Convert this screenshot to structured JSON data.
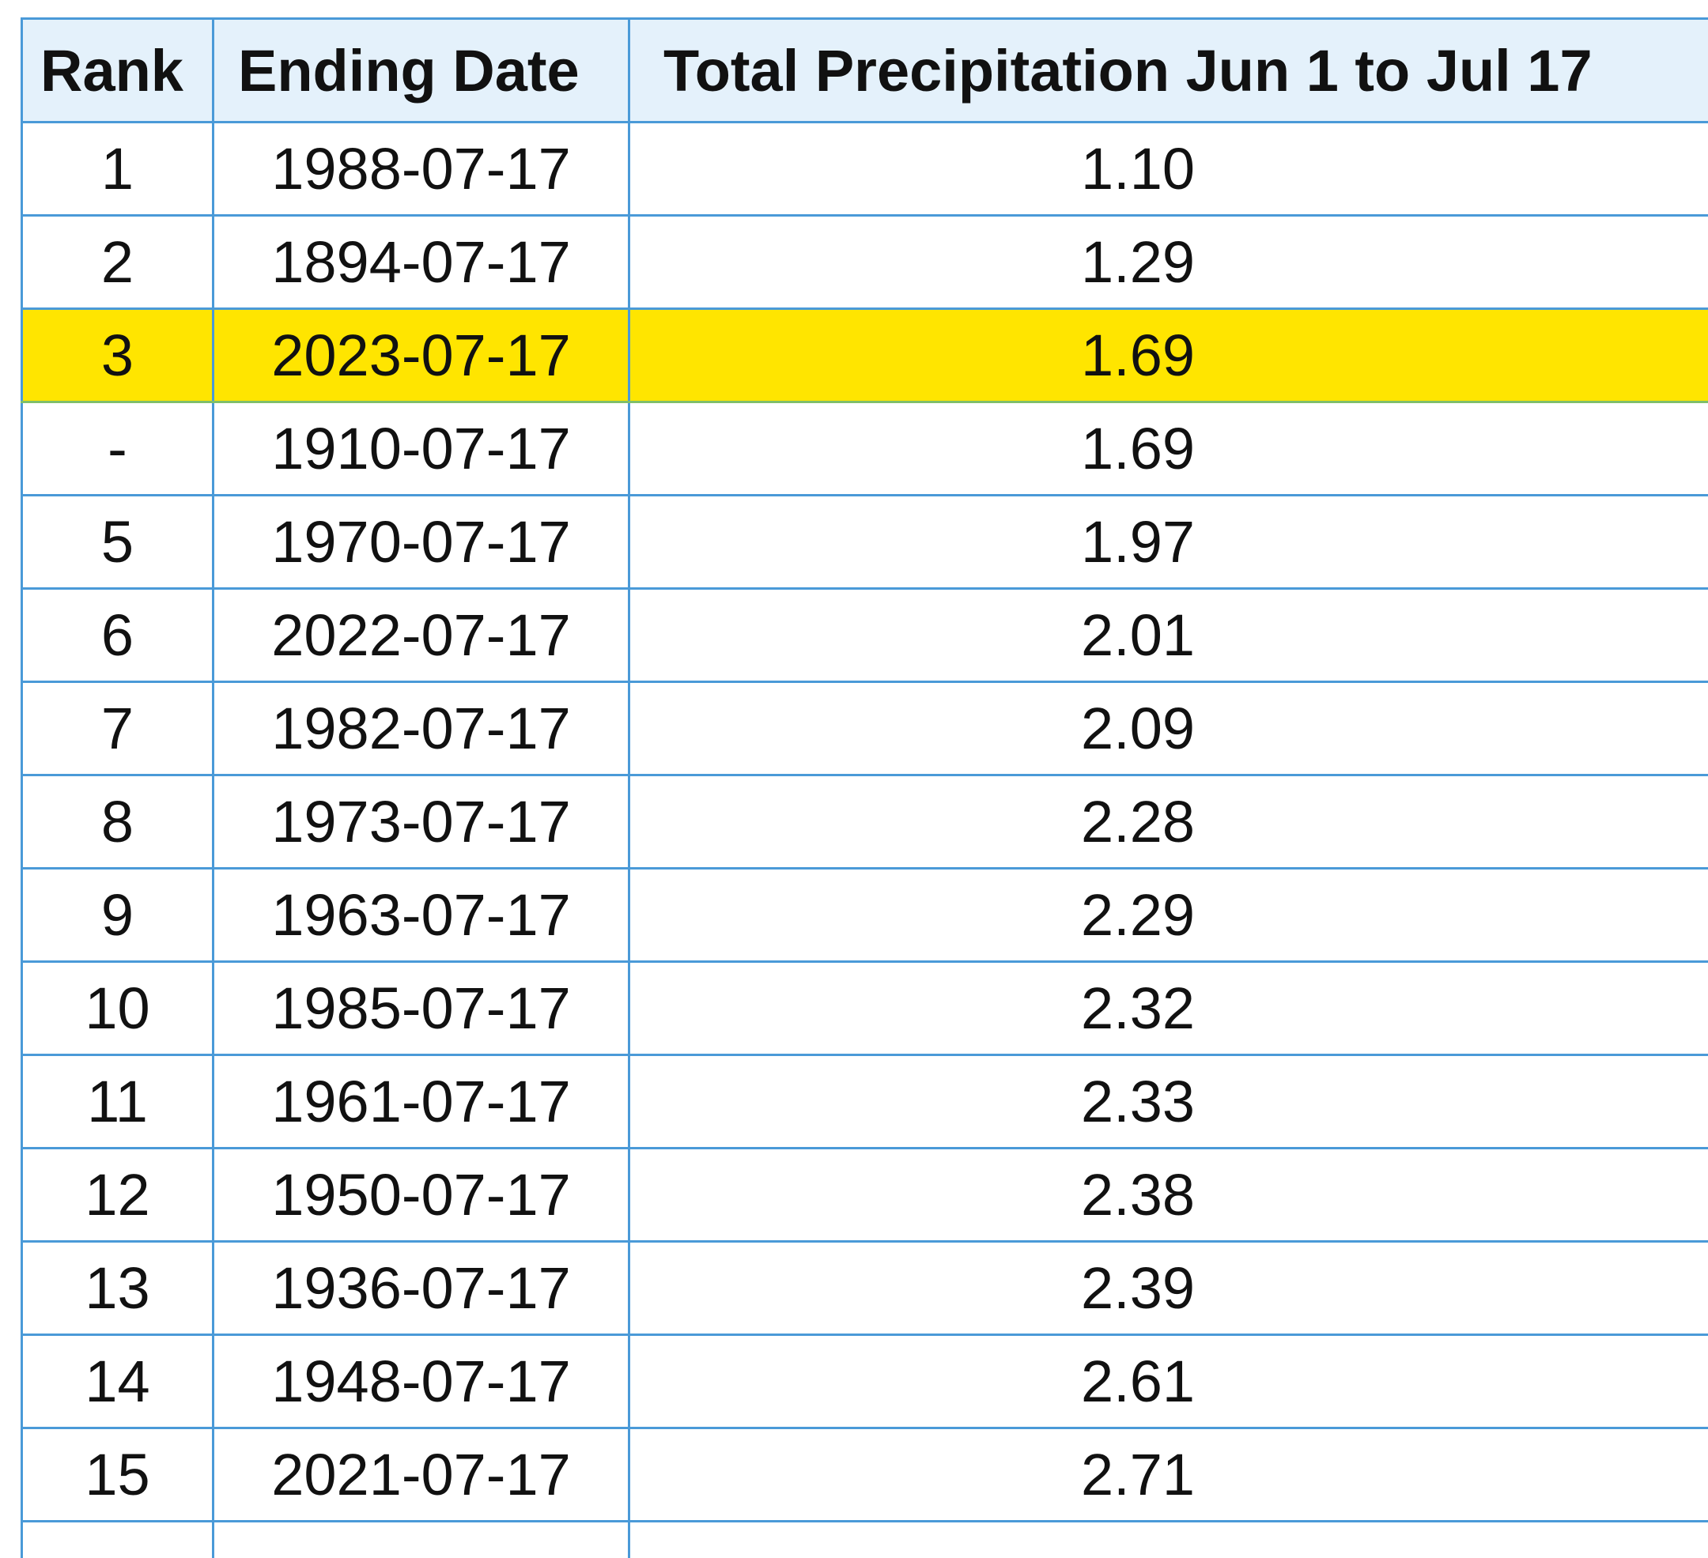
{
  "table": {
    "headers": {
      "rank": "Rank",
      "ending_date": "Ending Date",
      "precip": "Total Precipitation Jun 1 to Jul 17"
    },
    "highlight_color": "#ffe500",
    "border_color": "#4a9ad8",
    "header_bg": "#e4f1fb",
    "rows": [
      {
        "rank": "1",
        "date": "1988-07-17",
        "precip": "1.10",
        "highlighted": false
      },
      {
        "rank": "2",
        "date": "1894-07-17",
        "precip": "1.29",
        "highlighted": false
      },
      {
        "rank": "3",
        "date": "2023-07-17",
        "precip": "1.69",
        "highlighted": true
      },
      {
        "rank": "-",
        "date": "1910-07-17",
        "precip": "1.69",
        "highlighted": false
      },
      {
        "rank": "5",
        "date": "1970-07-17",
        "precip": "1.97",
        "highlighted": false
      },
      {
        "rank": "6",
        "date": "2022-07-17",
        "precip": "2.01",
        "highlighted": false
      },
      {
        "rank": "7",
        "date": "1982-07-17",
        "precip": "2.09",
        "highlighted": false
      },
      {
        "rank": "8",
        "date": "1973-07-17",
        "precip": "2.28",
        "highlighted": false
      },
      {
        "rank": "9",
        "date": "1963-07-17",
        "precip": "2.29",
        "highlighted": false
      },
      {
        "rank": "10",
        "date": "1985-07-17",
        "precip": "2.32",
        "highlighted": false
      },
      {
        "rank": "11",
        "date": "1961-07-17",
        "precip": "2.33",
        "highlighted": false
      },
      {
        "rank": "12",
        "date": "1950-07-17",
        "precip": "2.38",
        "highlighted": false
      },
      {
        "rank": "13",
        "date": "1936-07-17",
        "precip": "2.39",
        "highlighted": false
      },
      {
        "rank": "14",
        "date": "1948-07-17",
        "precip": "2.61",
        "highlighted": false
      },
      {
        "rank": "15",
        "date": "2021-07-17",
        "precip": "2.71",
        "highlighted": false
      },
      {
        "rank": "",
        "date": "",
        "precip": "",
        "highlighted": false
      }
    ]
  }
}
